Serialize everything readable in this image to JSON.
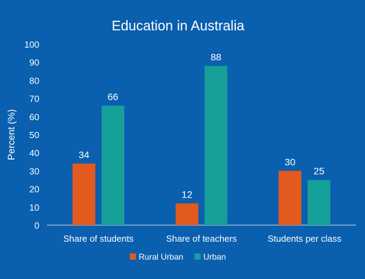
{
  "chart_data": {
    "type": "bar",
    "title": "Education in Australia",
    "xlabel": "",
    "ylabel": "Percent (%)",
    "ylim": [
      0,
      100
    ],
    "yticks": [
      0,
      10,
      20,
      30,
      40,
      50,
      60,
      70,
      80,
      90,
      100
    ],
    "categories": [
      "Share of students",
      "Share of teachers",
      "Students per class"
    ],
    "series": [
      {
        "name": "Rural Urban",
        "color": "#e35a1f",
        "values": [
          34,
          12,
          30
        ]
      },
      {
        "name": "Urban",
        "color": "#16a09a",
        "values": [
          66,
          88,
          25
        ]
      }
    ],
    "grid": false,
    "legend": "bottom"
  }
}
